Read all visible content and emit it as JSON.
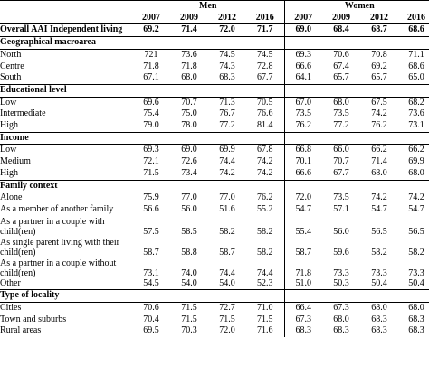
{
  "header": {
    "group_men": "Men",
    "group_women": "Women",
    "years": [
      "2007",
      "2009",
      "2012",
      "2016",
      "2007",
      "2009",
      "2012",
      "2016"
    ]
  },
  "overall": {
    "label": "Overall AAI Independent living",
    "values": [
      "69.2",
      "71.4",
      "72.0",
      "71.7",
      "69.0",
      "68.4",
      "68.7",
      "68.6"
    ]
  },
  "sections": [
    {
      "title": "Geographical macroarea",
      "rows": [
        {
          "label": "North",
          "values": [
            "721",
            "73.6",
            "74.5",
            "74.5",
            "69.3",
            "70.6",
            "70.8",
            "71.1"
          ]
        },
        {
          "label": "Centre",
          "values": [
            "71.8",
            "71.8",
            "74.3",
            "72.8",
            "66.6",
            "67.4",
            "69.2",
            "68.6"
          ]
        },
        {
          "label": "South",
          "values": [
            "67.1",
            "68.0",
            "68.3",
            "67.7",
            "64.1",
            "65.7",
            "65.7",
            "65.0"
          ]
        }
      ]
    },
    {
      "title": "Educational level",
      "rows": [
        {
          "label": "Low",
          "values": [
            "69.6",
            "70.7",
            "71.3",
            "70.5",
            "67.0",
            "68.0",
            "67.5",
            "68.2"
          ]
        },
        {
          "label": "Intermediate",
          "values": [
            "75.4",
            "75.0",
            "76.7",
            "76.6",
            "73.5",
            "73.5",
            "74.2",
            "73.6"
          ]
        },
        {
          "label": "High",
          "values": [
            "79.0",
            "78.0",
            "77.2",
            "81.4",
            "76.2",
            "77.2",
            "76.2",
            "73.1"
          ]
        }
      ]
    },
    {
      "title": "Income",
      "rows": [
        {
          "label": "Low",
          "values": [
            "69.3",
            "69.0",
            "69.9",
            "67.8",
            "66.8",
            "66.0",
            "66.2",
            "66.2"
          ]
        },
        {
          "label": "Medium",
          "values": [
            "72.1",
            "72.6",
            "74.4",
            "74.2",
            "70.1",
            "70.7",
            "71.4",
            "69.9"
          ]
        },
        {
          "label": "High",
          "values": [
            "71.5",
            "73.4",
            "74.2",
            "74.2",
            "66.6",
            "67.7",
            "68.0",
            "68.0"
          ]
        }
      ]
    },
    {
      "title": "Family context",
      "rows": [
        {
          "label": "Alone",
          "values": [
            "75.9",
            "77.0",
            "77.0",
            "76.2",
            "72.0",
            "73.5",
            "74.2",
            "74.2"
          ]
        },
        {
          "label": "As a member of another family",
          "values": [
            "56.6",
            "56.0",
            "51.6",
            "55.2",
            "54.7",
            "57.1",
            "54.7",
            "54.7"
          ]
        },
        {
          "label": "As a partner in a couple with child(ren)",
          "values": [
            "57.5",
            "58.5",
            "58.2",
            "58.2",
            "55.4",
            "56.0",
            "56.5",
            "56.5"
          ]
        },
        {
          "label": "As single parent living with their child(ren)",
          "values": [
            "58.7",
            "58.8",
            "58.7",
            "58.2",
            "58.7",
            "59.6",
            "58.2",
            "58.2"
          ]
        },
        {
          "label": "As a partner in a couple without child(ren)",
          "values": [
            "73.1",
            "74.0",
            "74.4",
            "74.4",
            "71.8",
            "73.3",
            "73.3",
            "73.3"
          ]
        },
        {
          "label": "Other",
          "values": [
            "54.5",
            "54.0",
            "54.0",
            "52.3",
            "51.0",
            "50.3",
            "50.4",
            "50.4"
          ]
        }
      ]
    },
    {
      "title": "Type of locality",
      "rows": [
        {
          "label": "Cities",
          "values": [
            "70.6",
            "71.5",
            "72.7",
            "71.0",
            "66.4",
            "67.3",
            "68.0",
            "68.0"
          ]
        },
        {
          "label": "Town and suburbs",
          "values": [
            "70.4",
            "71.5",
            "71.5",
            "71.5",
            "67.3",
            "68.0",
            "68.3",
            "68.3"
          ]
        },
        {
          "label": "Rural areas",
          "values": [
            "69.5",
            "70.3",
            "72.0",
            "71.6",
            "68.3",
            "68.3",
            "68.3",
            "68.3"
          ]
        }
      ]
    }
  ]
}
